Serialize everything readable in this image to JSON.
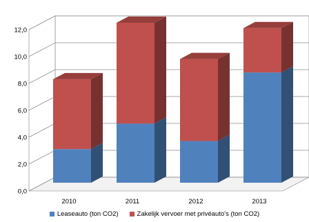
{
  "chart_data": {
    "type": "bar",
    "stacked": true,
    "three_d": true,
    "categories": [
      "2010",
      "2011",
      "2012",
      "2013"
    ],
    "series": [
      {
        "name": "Leaseauto (ton CO2)",
        "color": "#4f81bd",
        "values": [
          2.5,
          4.4,
          3.1,
          8.2
        ]
      },
      {
        "name": "Zakelijk vervoer met privéauto's  (ton CO2)",
        "color": "#c0504d",
        "values": [
          5.2,
          7.5,
          6.1,
          3.3
        ]
      }
    ],
    "y_ticks": [
      "0,0",
      "2,0",
      "4,0",
      "6,0",
      "8,0",
      "10,0",
      "12,0"
    ],
    "ylim": [
      0,
      12
    ],
    "grid": true,
    "legend_position": "bottom"
  }
}
